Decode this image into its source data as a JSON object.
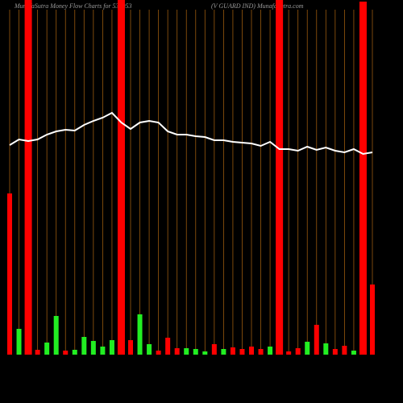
{
  "chart_data": {
    "type": "bar",
    "title": "MunafaSutra  Money Flow  Charts for 532953",
    "subtitle": "(V GUARD IND) MunafaSutra.com",
    "ylim": [
      0,
      440
    ],
    "grid": true,
    "grid_color": "#9a5a0e",
    "bars": {
      "values": [
        200,
        32,
        440,
        6,
        15,
        48,
        5,
        6,
        22,
        17,
        10,
        18,
        440,
        18,
        50,
        13,
        5,
        21,
        8,
        8,
        7,
        4,
        13,
        7,
        9,
        7,
        10,
        7,
        10,
        440,
        4,
        8,
        16,
        37,
        14,
        7,
        11,
        5,
        438,
        87
      ],
      "colors": [
        "#ff0000",
        "#22ee22",
        "#ff0000",
        "#ff0000",
        "#22ee22",
        "#22ee22",
        "#ff0000",
        "#22ee22",
        "#22ee22",
        "#22ee22",
        "#22ee22",
        "#22ee22",
        "#ff0000",
        "#ff0000",
        "#22ee22",
        "#22ee22",
        "#ff0000",
        "#ff0000",
        "#ff0000",
        "#22ee22",
        "#22ee22",
        "#22ee22",
        "#ff0000",
        "#22ee22",
        "#ff0000",
        "#ff0000",
        "#ff0000",
        "#ff0000",
        "#22ee22",
        "#ff0000",
        "#ff0000",
        "#ff0000",
        "#22ee22",
        "#ff0000",
        "#22ee22",
        "#ff0000",
        "#ff0000",
        "#22ee22",
        "#ff0000",
        "#ff0000"
      ]
    },
    "line": {
      "values": [
        260,
        267,
        265,
        267,
        273,
        277,
        279,
        278,
        285,
        290,
        294,
        300,
        288,
        280,
        288,
        290,
        288,
        277,
        273,
        273,
        271,
        270,
        266,
        266,
        264,
        263,
        262,
        259,
        264,
        255,
        255,
        253,
        258,
        254,
        257,
        253,
        251,
        255,
        249,
        251
      ],
      "color": "#ffffff"
    }
  }
}
